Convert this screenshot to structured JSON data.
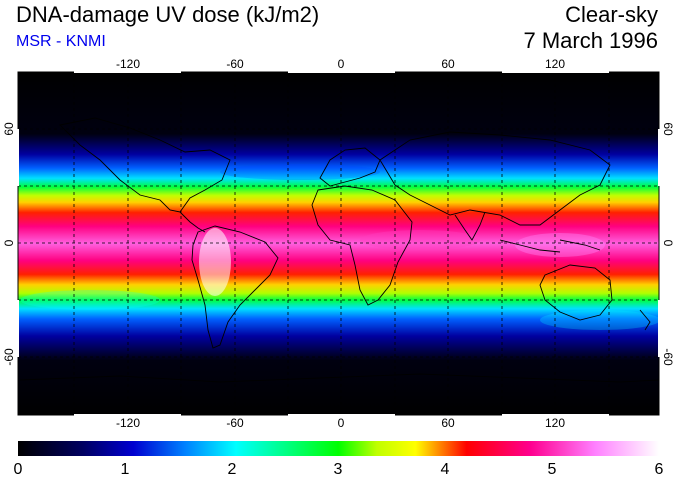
{
  "header": {
    "title": "DNA-damage UV dose (kJ/m2)",
    "subtitle": "MSR - KNMI",
    "condition": "Clear-sky",
    "date": "7 March 1996"
  },
  "map": {
    "lon_ticks": [
      "-120",
      "-60",
      "0",
      "60",
      "120"
    ],
    "lat_ticks": [
      "60",
      "0",
      "-60"
    ],
    "lon_range": [
      -180,
      180
    ],
    "lat_range": [
      -90,
      90
    ],
    "gridlines": "dashed every 30 degrees"
  },
  "colorbar": {
    "min": 0,
    "max": 6,
    "ticks": [
      "0",
      "1",
      "2",
      "3",
      "4",
      "5",
      "6"
    ],
    "colors": [
      "#000000",
      "#0000a0",
      "#0040ff",
      "#00ffff",
      "#00ff40",
      "#ffff00",
      "#ff0000",
      "#ff0090",
      "#ff80ff",
      "#ffffff"
    ]
  }
}
